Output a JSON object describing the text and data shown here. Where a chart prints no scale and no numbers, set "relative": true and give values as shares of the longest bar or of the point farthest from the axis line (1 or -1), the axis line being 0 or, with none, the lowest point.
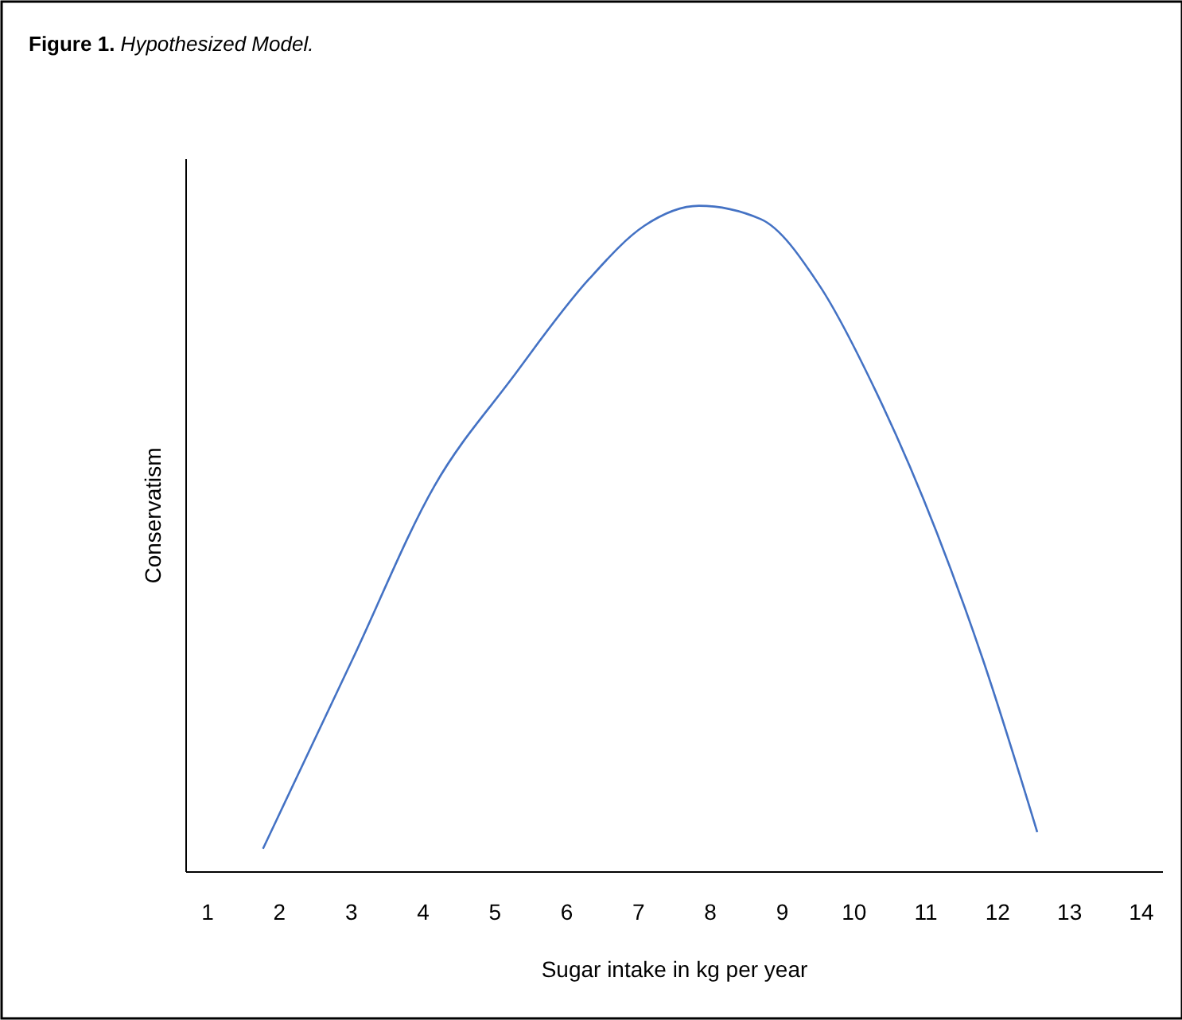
{
  "chart_data": {
    "type": "line",
    "title": "Figure 1. Hypothesized Model.",
    "xlabel": "Sugar intake in kg per year",
    "ylabel": "Conservatism",
    "relative": true,
    "xlim": [
      0.7,
      14.3
    ],
    "xticks": [
      1,
      2,
      3,
      4,
      5,
      6,
      7,
      8,
      9,
      10,
      11,
      12,
      13,
      14
    ],
    "grid": false,
    "marker": "none",
    "line_style": "solid",
    "series": [
      {
        "color": "#4472c4",
        "x": [
          1.77,
          3.02,
          4.16,
          5.23,
          6.31,
          7.08,
          7.84,
          8.7,
          9.52,
          10.31,
          11.15,
          11.79,
          12.55
        ],
        "values": [
          0.035,
          0.32,
          0.58,
          0.74,
          0.89,
          0.97,
          1,
          0.98,
          0.88,
          0.72,
          0.51,
          0.32,
          0.06
        ]
      }
    ]
  }
}
